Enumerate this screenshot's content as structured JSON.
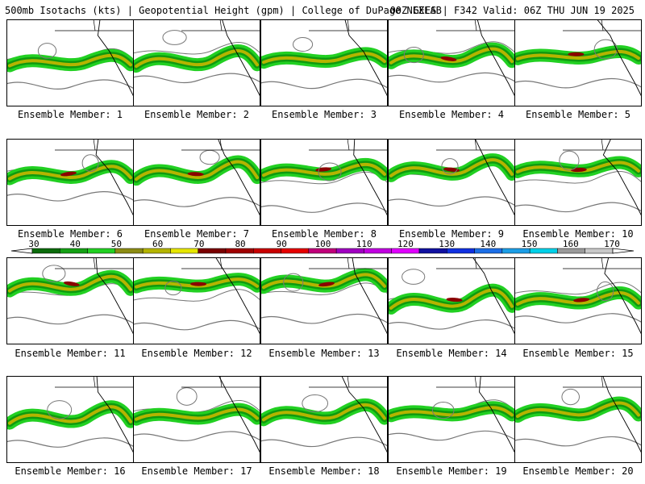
{
  "header": {
    "left": "500mb Isotachs (kts) | Geopotential Height (gpm) | College of DuPage NEXLAB",
    "right": "00Z GEFS | F342 Valid: 06Z THU JUN 19 2025"
  },
  "members": [
    "Ensemble Member: 1",
    "Ensemble Member: 2",
    "Ensemble Member: 3",
    "Ensemble Member: 4",
    "Ensemble Member: 5",
    "Ensemble Member: 6",
    "Ensemble Member: 7",
    "Ensemble Member: 8",
    "Ensemble Member: 9",
    "Ensemble Member: 10",
    "Ensemble Member: 11",
    "Ensemble Member: 12",
    "Ensemble Member: 13",
    "Ensemble Member: 14",
    "Ensemble Member: 15",
    "Ensemble Member: 16",
    "Ensemble Member: 17",
    "Ensemble Member: 18",
    "Ensemble Member: 19",
    "Ensemble Member: 20"
  ],
  "colorbar": {
    "labels": [
      "30",
      "40",
      "50",
      "60",
      "70",
      "80",
      "90",
      "100",
      "110",
      "120",
      "130",
      "140",
      "150",
      "160",
      "170"
    ],
    "colors": [
      "#0b6b0b",
      "#14a014",
      "#22d022",
      "#8c8c14",
      "#b4b400",
      "#e6e600",
      "#7a0000",
      "#a00000",
      "#c80000",
      "#e60000",
      "#c0007a",
      "#a000c0",
      "#c000e0",
      "#e000ff",
      "#1010a0",
      "#1030e0",
      "#1c6ee6",
      "#1c9ee6",
      "#00d0e8",
      "#9a9a9a",
      "#c8c8c8"
    ]
  },
  "colors": {
    "height_contour": "#777777",
    "coastline": "#000000",
    "jet_light": "#22d022",
    "jet_mid": "#0f9a0f",
    "jet_strong": "#b4b400",
    "jet_max": "#8a0000"
  }
}
